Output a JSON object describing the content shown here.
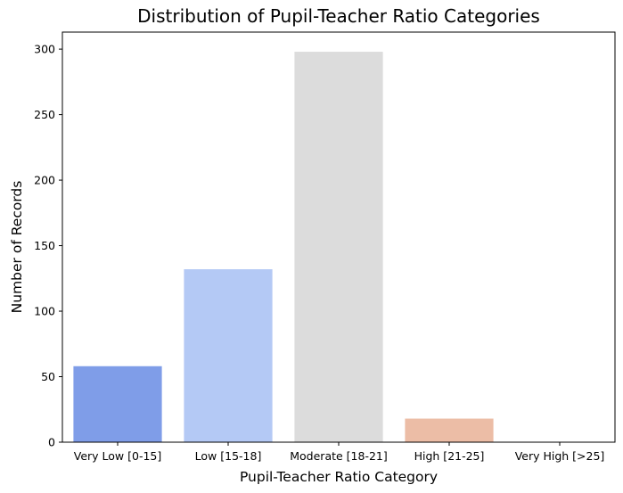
{
  "chart_data": {
    "type": "bar",
    "title": "Distribution of Pupil-Teacher Ratio Categories",
    "xlabel": "Pupil-Teacher Ratio Category",
    "ylabel": "Number of Records",
    "categories": [
      "Very Low [0-15]",
      "Low [15-18]",
      "Moderate [18-21]",
      "High [21-25]",
      "Very High [>25]"
    ],
    "values": [
      58,
      132,
      298,
      18,
      0
    ],
    "colors": [
      "#7f9de8",
      "#b4c9f5",
      "#dcdcdc",
      "#ecbda6",
      "#e6866b"
    ],
    "ylim": [
      0,
      313
    ],
    "yticks": [
      0,
      50,
      100,
      150,
      200,
      250,
      300
    ],
    "grid": false,
    "legend": "none"
  }
}
